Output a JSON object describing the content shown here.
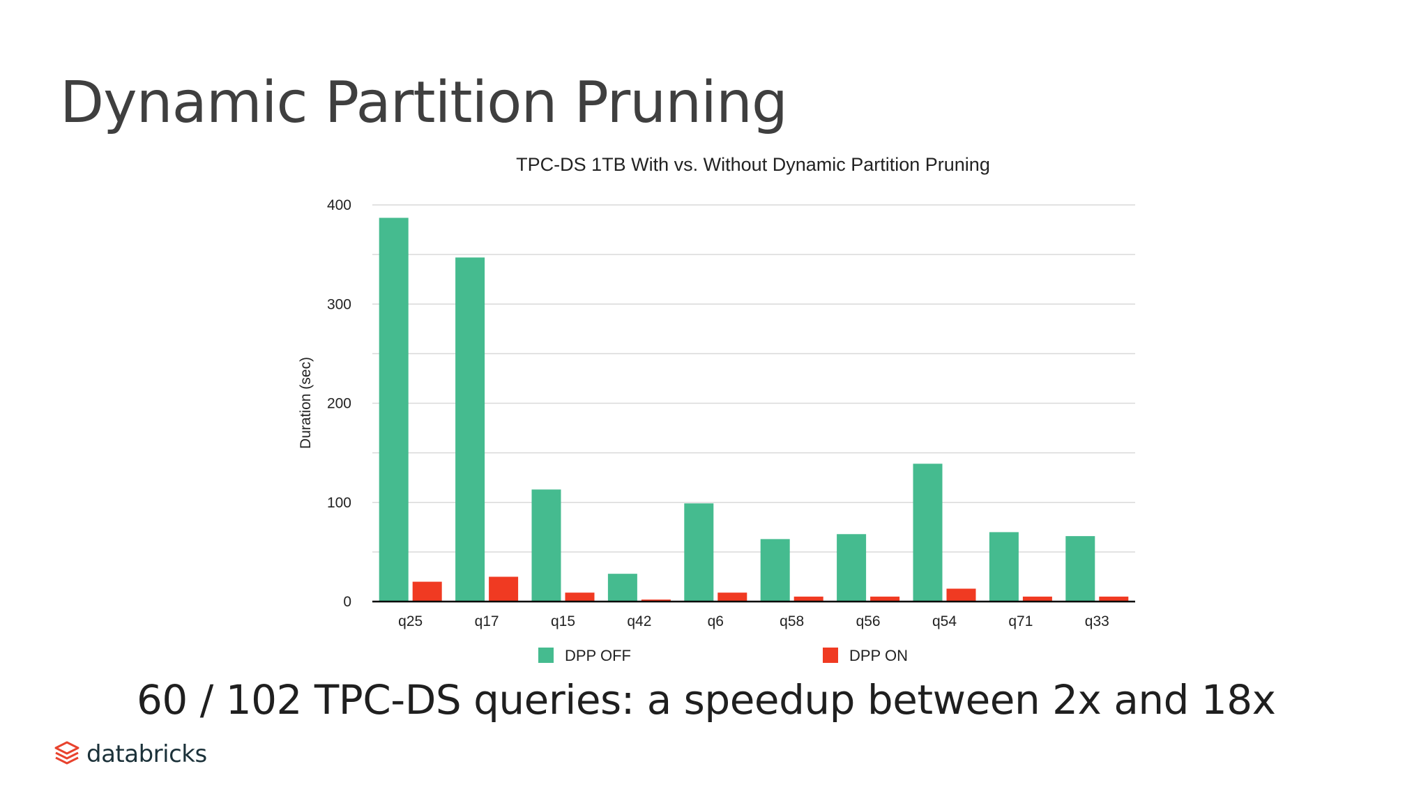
{
  "slide": {
    "title": "Dynamic Partition Pruning",
    "subtitle": "60 / 102 TPC-DS queries: a speedup between 2x and 18x",
    "brand": "databricks"
  },
  "colors": {
    "dpp_off": "#45bb8f",
    "dpp_on": "#f03a22",
    "brand_logo": "#e8432e"
  },
  "chart_data": {
    "type": "bar",
    "title": "TPC-DS 1TB With vs. Without Dynamic Partition Pruning",
    "xlabel": "",
    "ylabel": "Duration (sec)",
    "ylim": [
      0,
      400
    ],
    "yticks": [
      0,
      100,
      200,
      300,
      400
    ],
    "grid": true,
    "legend_position": "bottom",
    "categories": [
      "q25",
      "q17",
      "q15",
      "q42",
      "q6",
      "q58",
      "q56",
      "q54",
      "q71",
      "q33"
    ],
    "series": [
      {
        "name": "DPP OFF",
        "color": "#45bb8f",
        "values": [
          387,
          347,
          113,
          28,
          99,
          63,
          68,
          139,
          70,
          66
        ]
      },
      {
        "name": "DPP ON",
        "color": "#f03a22",
        "values": [
          20,
          25,
          9,
          2,
          9,
          5,
          5,
          13,
          5,
          5
        ]
      }
    ]
  }
}
